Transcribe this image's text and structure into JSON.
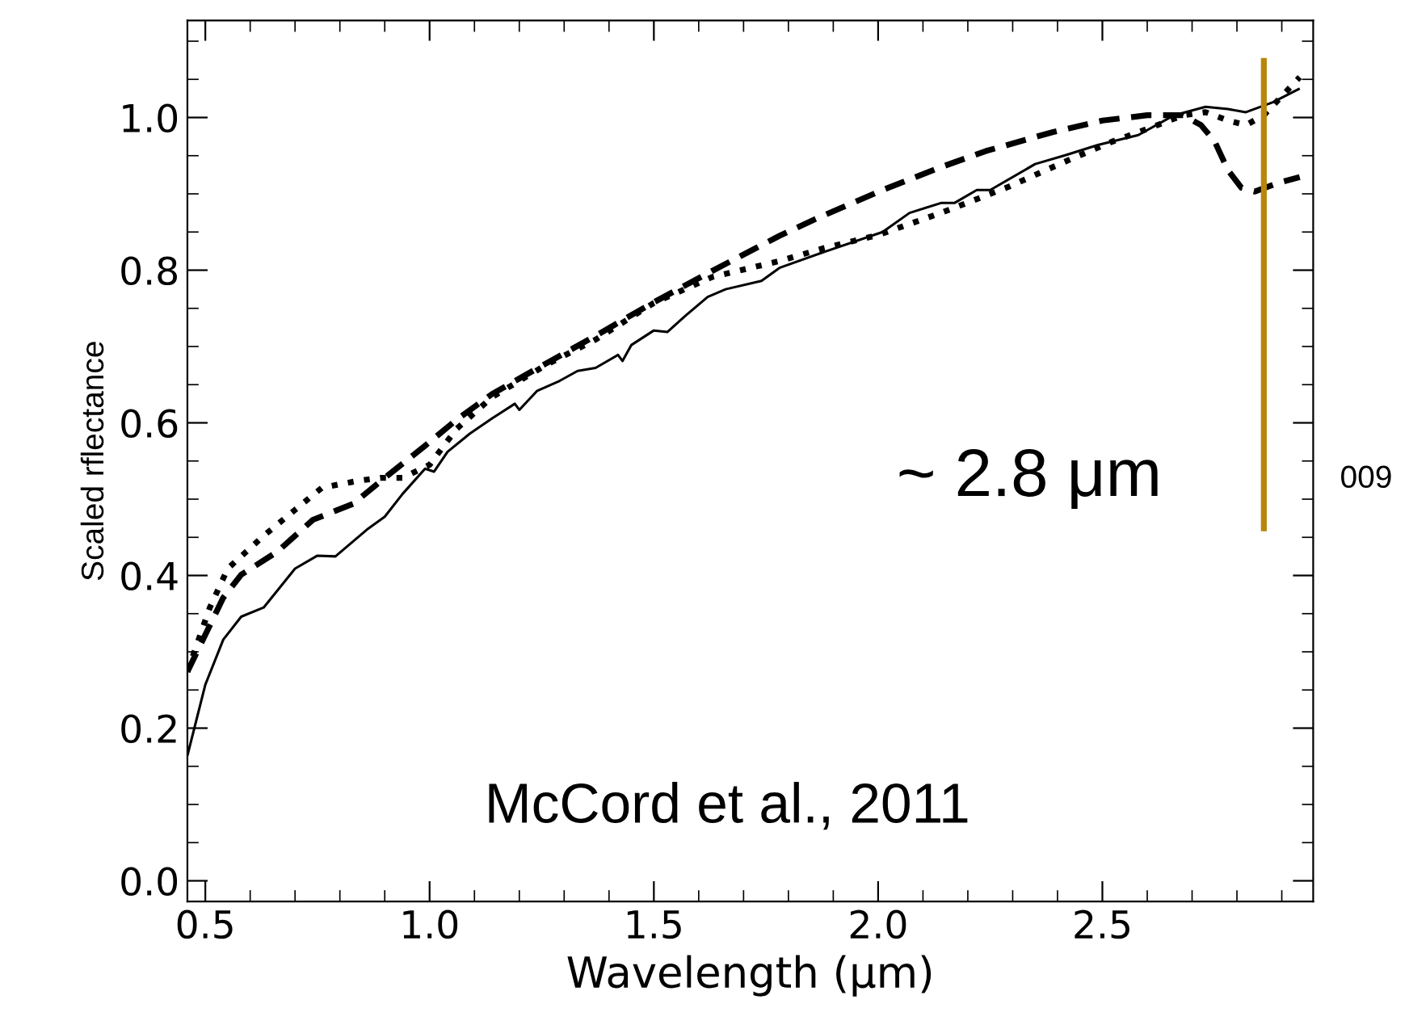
{
  "chart_data": {
    "type": "line",
    "xlabel": "Wavelength (μm)",
    "ylabel": "Scaled rflectance",
    "x": [
      0.46,
      0.5,
      0.54,
      0.58,
      0.63,
      0.7,
      0.75,
      0.79,
      0.86,
      0.9,
      0.94,
      0.99,
      1.01,
      1.04,
      1.09,
      1.14,
      1.19,
      1.2,
      1.24,
      1.29,
      1.33,
      1.37,
      1.42,
      1.43,
      1.45,
      1.5,
      1.53,
      1.57,
      1.62,
      1.66,
      1.74,
      1.78,
      1.88,
      2.01,
      2.07,
      2.14,
      2.17,
      2.22,
      2.25,
      2.35,
      2.42,
      2.49,
      2.58,
      2.66,
      2.73,
      2.78,
      2.82,
      2.88,
      2.94
    ],
    "series": [
      {
        "color": "#000000",
        "line_style": "solid",
        "values": [
          0.164,
          0.257,
          0.316,
          0.346,
          0.358,
          0.409,
          0.426,
          0.425,
          0.46,
          0.477,
          0.507,
          0.54,
          0.536,
          0.562,
          0.586,
          0.606,
          0.625,
          0.617,
          0.642,
          0.655,
          0.668,
          0.672,
          0.689,
          0.681,
          0.702,
          0.721,
          0.719,
          0.74,
          0.765,
          0.775,
          0.786,
          0.803,
          0.824,
          0.85,
          0.875,
          0.888,
          0.888,
          0.905,
          0.905,
          0.939,
          0.951,
          0.964,
          0.977,
          1.003,
          1.014,
          1.011,
          1.007,
          1.02,
          1.038
        ]
      },
      {
        "color": "#000000",
        "line_style": "dashed",
        "x": [
          0.46,
          0.54,
          0.58,
          0.66,
          0.74,
          0.83,
          0.9,
          0.99,
          1.06,
          1.14,
          1.23,
          1.37,
          1.5,
          1.63,
          1.78,
          1.86,
          2.01,
          2.14,
          2.24,
          2.39,
          2.5,
          2.6,
          2.68,
          2.72,
          2.75,
          2.78,
          2.81,
          2.84,
          2.89,
          2.94
        ],
        "values": [
          0.274,
          0.371,
          0.401,
          0.431,
          0.473,
          0.494,
          0.528,
          0.57,
          0.604,
          0.638,
          0.668,
          0.714,
          0.758,
          0.799,
          0.845,
          0.867,
          0.905,
          0.935,
          0.956,
          0.981,
          0.996,
          1.003,
          1.003,
          0.99,
          0.969,
          0.931,
          0.908,
          0.903,
          0.914,
          0.922
        ]
      },
      {
        "color": "#000000",
        "line_style": "dotted",
        "x": [
          0.46,
          0.51,
          0.55,
          0.63,
          0.7,
          0.76,
          0.84,
          0.89,
          0.94,
          1.0,
          1.06,
          1.14,
          1.26,
          1.37,
          1.5,
          1.63,
          1.78,
          1.88,
          2.0,
          2.14,
          2.29,
          2.42,
          2.52,
          2.6,
          2.68,
          2.73,
          2.78,
          2.82,
          2.86,
          2.94
        ],
        "values": [
          0.274,
          0.358,
          0.409,
          0.452,
          0.486,
          0.515,
          0.524,
          0.528,
          0.528,
          0.545,
          0.592,
          0.634,
          0.676,
          0.709,
          0.757,
          0.791,
          0.812,
          0.829,
          0.846,
          0.875,
          0.909,
          0.943,
          0.968,
          0.985,
          1.003,
          1.007,
          0.996,
          0.99,
          1.003,
          1.053
        ]
      },
      {
        "color": "#b8860b",
        "line_style": "solid",
        "x": [
          2.86,
          2.86
        ],
        "values": [
          0.458,
          1.078
        ]
      }
    ],
    "annotations": [
      "~ 2.8 μm",
      "McCord et al., 2011",
      "009"
    ],
    "xlim": [
      0.46,
      2.97
    ],
    "ylim": [
      -0.027,
      1.127
    ],
    "xticks": [
      0.5,
      {
        "value": 1,
        "label": "1.0"
      },
      1.5,
      {
        "value": 2,
        "label": "2.0"
      },
      2.5
    ],
    "yticks": [
      {
        "value": 0,
        "label": "0.0"
      },
      0.2,
      0.4,
      0.6,
      0.8,
      {
        "value": 1,
        "label": "1.0"
      }
    ],
    "grid": false,
    "legend": false,
    "marker": "none"
  }
}
